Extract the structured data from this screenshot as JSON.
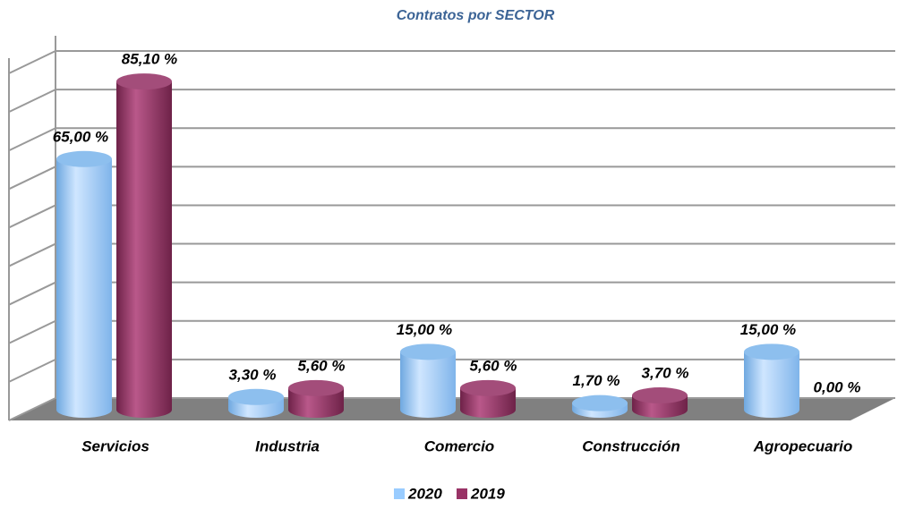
{
  "chart_data": {
    "type": "bar3d",
    "title": "Contratos por SECTOR",
    "categories": [
      "Servicios",
      "Industria",
      "Comercio",
      "Construcción",
      "Agropecuario"
    ],
    "series": [
      {
        "name": "2020",
        "color": "#99ccff",
        "values": [
          65,
          3.3,
          15,
          1.7,
          15
        ],
        "value_labels": [
          "65,00 %",
          "3,30 %",
          "15,00 %",
          "1,70 %",
          "15,00 %"
        ]
      },
      {
        "name": "2019",
        "color": "#993366",
        "values": [
          85.1,
          5.6,
          5.6,
          3.7,
          0
        ],
        "value_labels": [
          "85,10 %",
          "5,60 %",
          "5,60 %",
          "3,70 %",
          "0,00 %"
        ]
      }
    ],
    "ylim": [
      0,
      90
    ],
    "yticks": [
      0,
      10,
      20,
      30,
      40,
      50,
      60,
      70,
      80,
      90
    ],
    "grid": true,
    "legend": "bottom"
  }
}
